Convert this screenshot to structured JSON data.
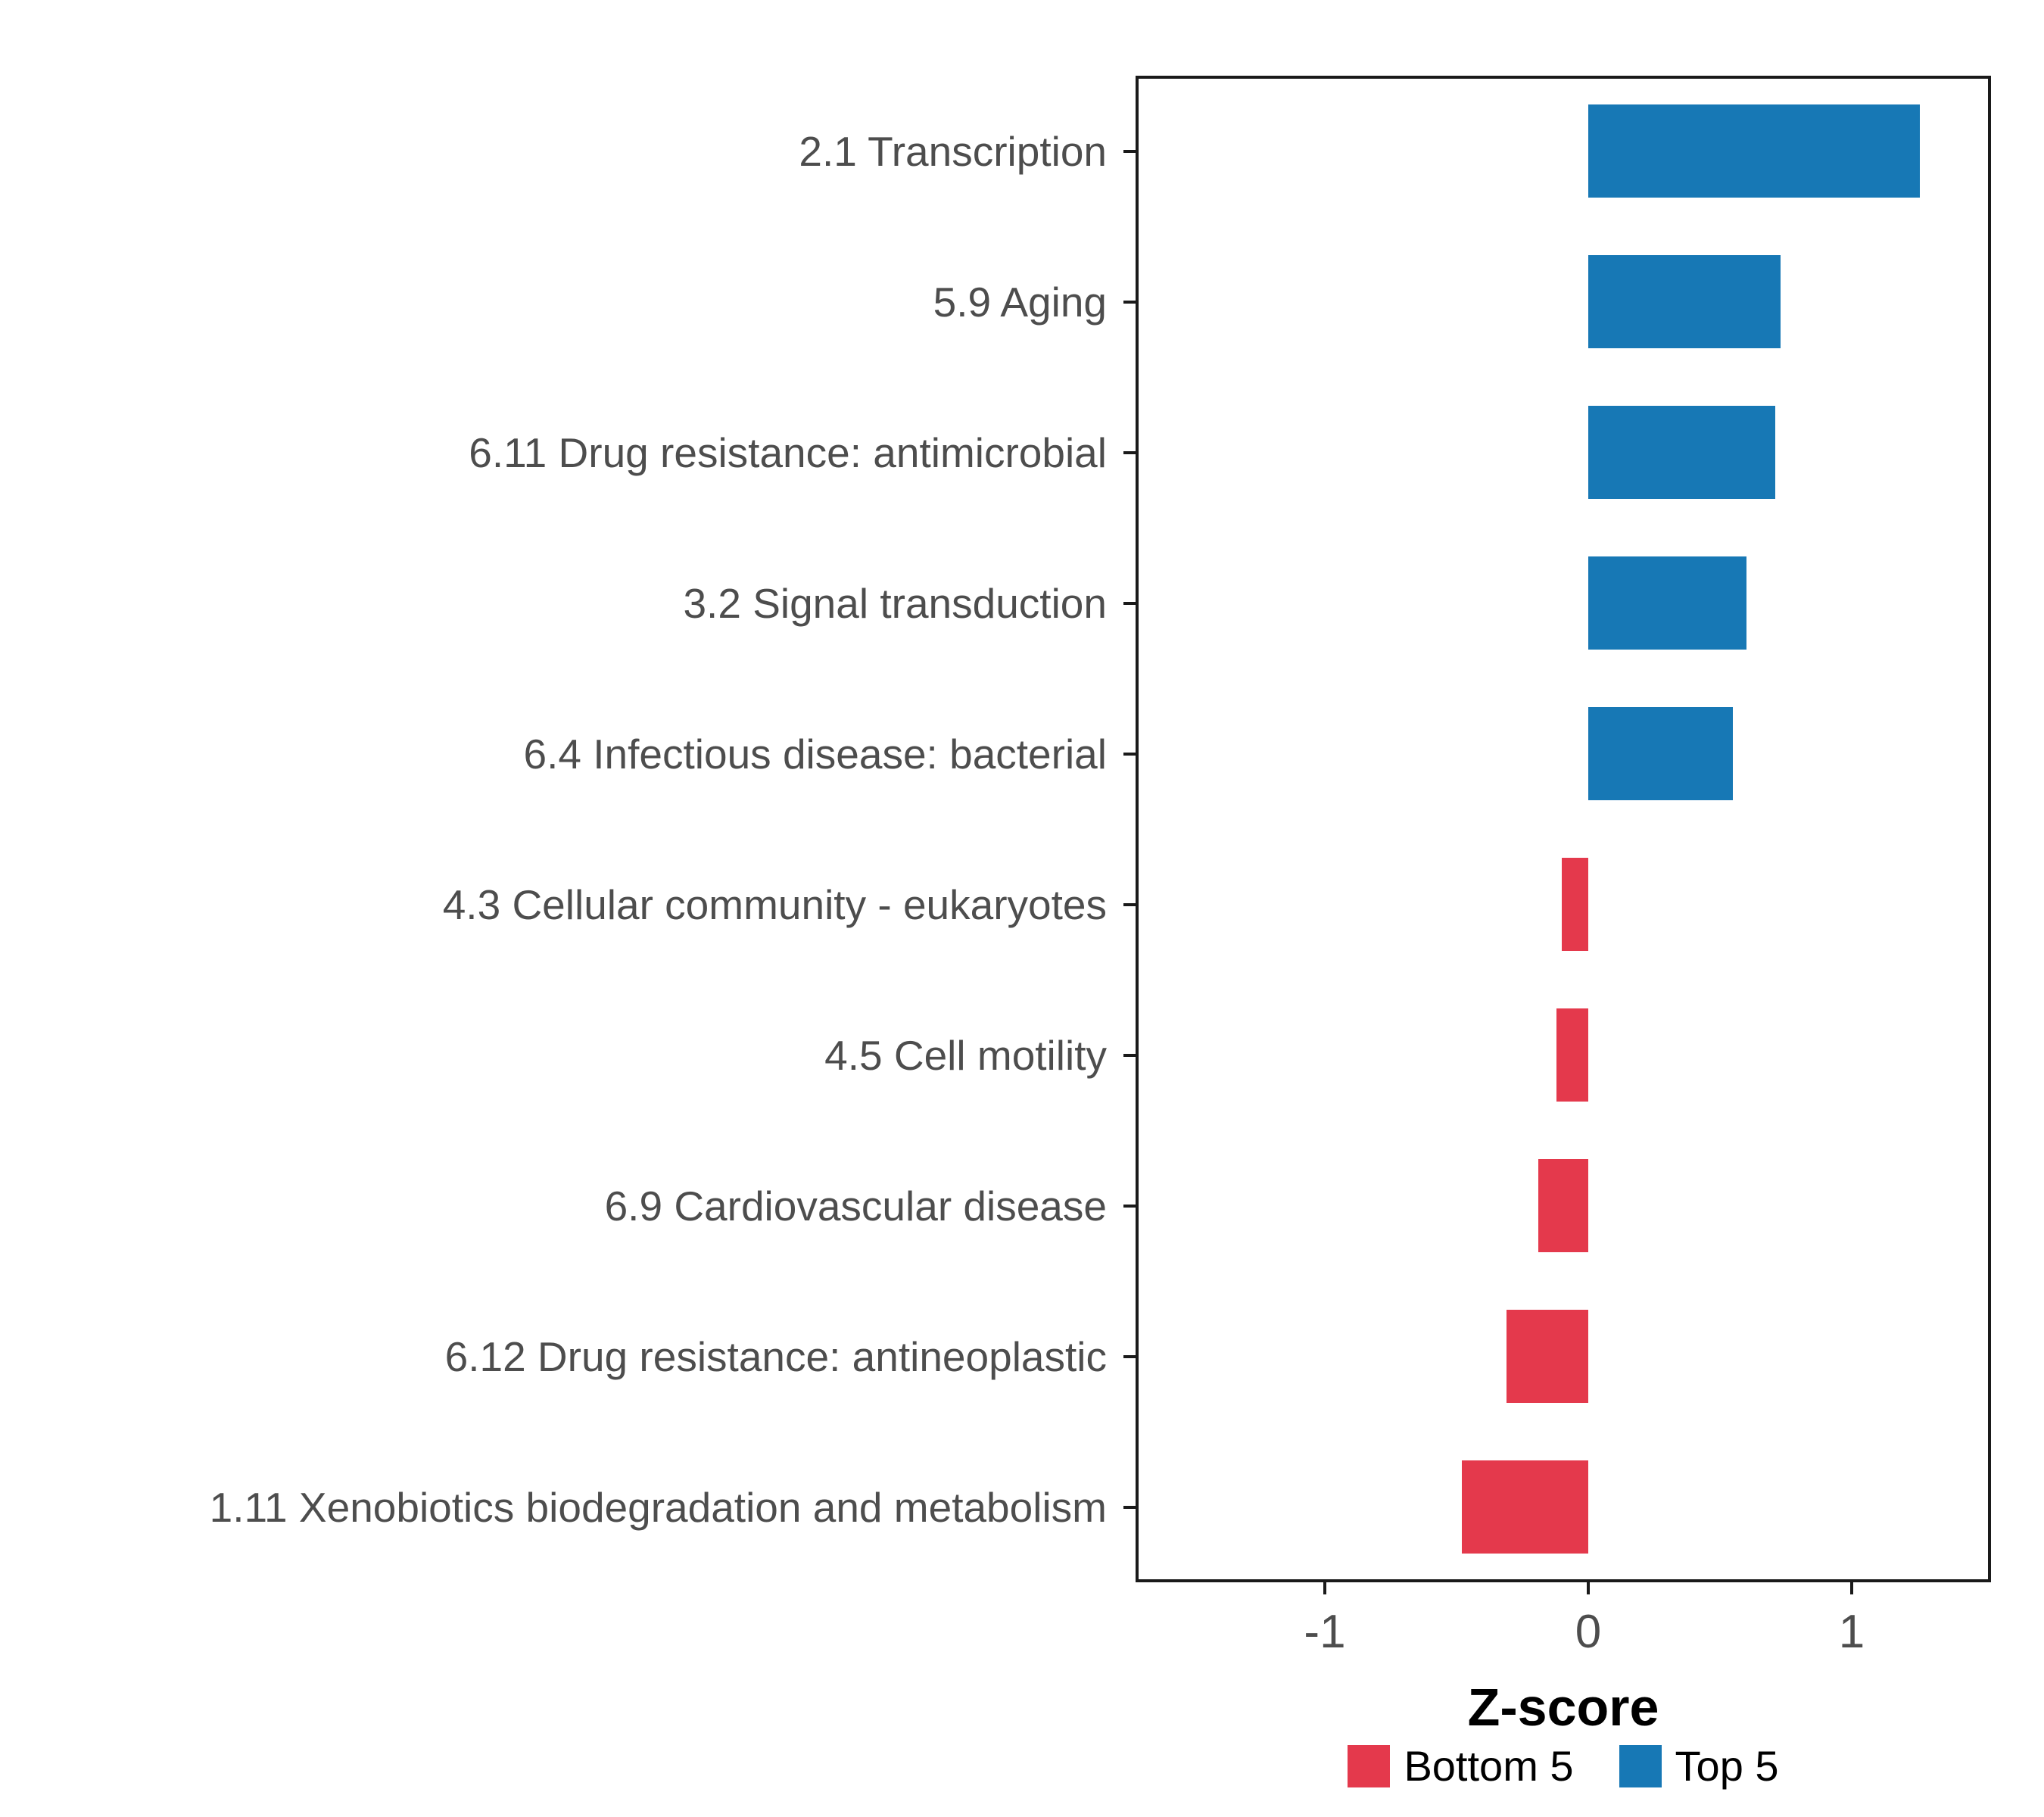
{
  "chart_data": {
    "type": "bar",
    "orientation": "horizontal",
    "title": "",
    "xlabel": "Z-score",
    "ylabel": "",
    "xlim": [
      -1.72,
      1.53
    ],
    "xticks": [
      -1,
      0,
      1
    ],
    "grid": false,
    "legend_position": "bottom",
    "categories": [
      "2.1 Transcription",
      "5.9 Aging",
      "6.11 Drug resistance: antimicrobial",
      "3.2 Signal transduction",
      "6.4 Infectious disease: bacterial",
      "4.3 Cellular community - eukaryotes",
      "4.5 Cell motility",
      "6.9 Cardiovascular disease",
      "6.12 Drug resistance: antineoplastic",
      "1.11 Xenobiotics biodegradation and metabolism"
    ],
    "values": [
      1.26,
      0.73,
      0.71,
      0.6,
      0.55,
      -0.1,
      -0.12,
      -0.19,
      -0.31,
      -0.48
    ],
    "groups": [
      "Top 5",
      "Top 5",
      "Top 5",
      "Top 5",
      "Top 5",
      "Bottom 5",
      "Bottom 5",
      "Bottom 5",
      "Bottom 5",
      "Bottom 5"
    ],
    "colors": {
      "Top 5": "#1778B5",
      "Bottom 5": "#E4394C"
    },
    "legend": [
      {
        "label": "Bottom 5",
        "color": "#E4394C"
      },
      {
        "label": "Top 5",
        "color": "#1778B5"
      }
    ]
  }
}
